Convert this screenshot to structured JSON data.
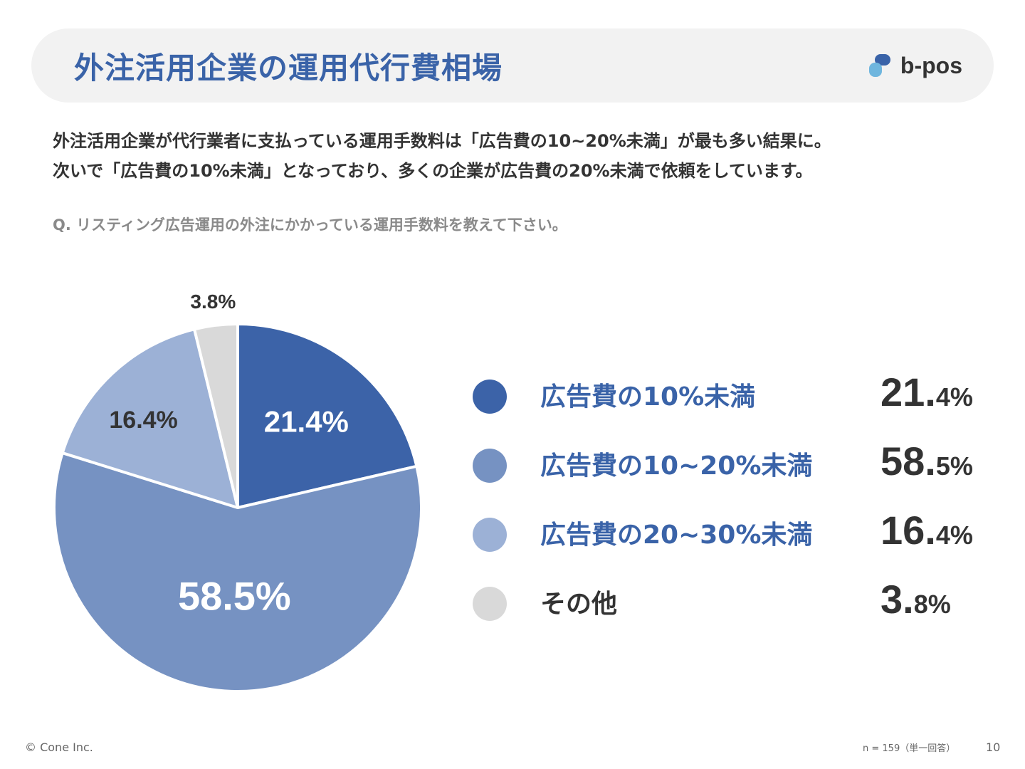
{
  "header": {
    "title": "外注活用企業の運用代行費相場",
    "logo_text": "b-pos"
  },
  "lead": {
    "line1": "外注活用企業が代行業者に支払っている運用手数料は「広告費の10~20%未満」が最も多い結果に。",
    "line2": "次いで「広告費の10%未満」となっており、多くの企業が広告費の20%未満で依頼をしています。"
  },
  "question": "Q. リスティング広告運用の外注にかかっている運用手数料を教えて下さい。",
  "chart_data": {
    "type": "pie",
    "categories": [
      "広告費の10%未満",
      "広告費の10~20%未満",
      "広告費の20~30%未満",
      "その他"
    ],
    "values": [
      21.4,
      58.5,
      16.4,
      3.8
    ],
    "data_labels": [
      "21.4%",
      "58.5%",
      "16.4%",
      "3.8%"
    ],
    "colors": [
      "#3c63a8",
      "#7692c2",
      "#9cb1d6",
      "#d9d9d9"
    ],
    "label_colors": [
      "#ffffff",
      "#ffffff",
      "#333333",
      "#333333"
    ],
    "start_angle_deg": 0,
    "direction": "clockwise",
    "legend_position": "right"
  },
  "legend": {
    "items": [
      {
        "label": "広告費の10%未満",
        "value_int": "21.",
        "value_dec": "4%"
      },
      {
        "label": "広告費の10~20%未満",
        "value_int": "58.",
        "value_dec": "5%"
      },
      {
        "label": "広告費の20~30%未満",
        "value_int": "16.",
        "value_dec": "4%"
      },
      {
        "label": "その他",
        "value_int": "3.",
        "value_dec": "8%"
      }
    ]
  },
  "footer": {
    "copyright": "© Cone Inc.",
    "sample": "n = 159（単一回答）",
    "page": "10"
  }
}
